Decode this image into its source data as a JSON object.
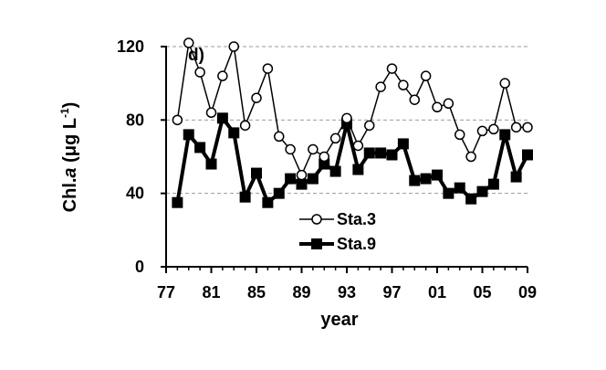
{
  "chart_data": {
    "type": "line",
    "panel_label": "d)",
    "xlabel": "year",
    "ylabel_main": "Chl.",
    "ylabel_italic": "a",
    "ylabel_unit": " (μg L",
    "ylabel_sup": "-1",
    "ylabel_close": ")",
    "ylim": [
      0,
      120
    ],
    "yticks": [
      0,
      40,
      80,
      120
    ],
    "xlim": [
      1977,
      2009
    ],
    "xticks": [
      1977,
      1981,
      1985,
      1989,
      1993,
      1997,
      2001,
      2005,
      2009
    ],
    "xtick_labels": [
      "77",
      "81",
      "85",
      "89",
      "93",
      "97",
      "01",
      "05",
      "09"
    ],
    "grid": "horizontal-dashed",
    "legend_placement": "lower-center",
    "x": [
      1978,
      1979,
      1980,
      1981,
      1982,
      1983,
      1984,
      1985,
      1986,
      1987,
      1988,
      1989,
      1990,
      1991,
      1992,
      1993,
      1994,
      1995,
      1996,
      1997,
      1998,
      1999,
      2000,
      2001,
      2002,
      2003,
      2004,
      2005,
      2006,
      2007,
      2008,
      2009
    ],
    "series": [
      {
        "name": "Sta.3",
        "marker": "open-circle",
        "values": [
          80,
          122,
          106,
          84,
          104,
          120,
          77,
          92,
          108,
          71,
          64,
          50,
          64,
          60,
          70,
          81,
          66,
          77,
          98,
          108,
          99,
          91,
          104,
          87,
          89,
          72,
          60,
          74,
          75,
          100,
          76,
          76
        ]
      },
      {
        "name": "Sta.9",
        "marker": "filled-square",
        "values": [
          35,
          72,
          65,
          56,
          81,
          73,
          38,
          51,
          35,
          40,
          48,
          45,
          48,
          56,
          52,
          78,
          53,
          62,
          62,
          61,
          67,
          47,
          48,
          50,
          40,
          43,
          37,
          41,
          45,
          72,
          49,
          61
        ]
      }
    ]
  }
}
